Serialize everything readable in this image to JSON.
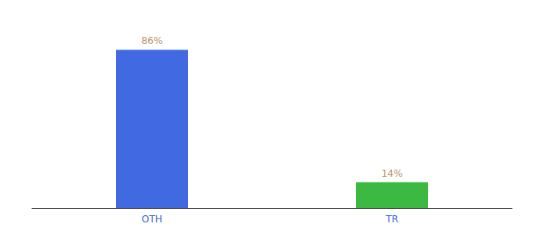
{
  "chart_data": {
    "type": "bar",
    "categories": [
      "OTH",
      "TR"
    ],
    "values": [
      86,
      14
    ],
    "value_labels": [
      "86%",
      "14%"
    ],
    "colors": [
      "#4169e1",
      "#3cb943"
    ],
    "data_labels": true,
    "ylim": [
      0,
      100
    ],
    "grid": false,
    "tick_labels": "x"
  }
}
